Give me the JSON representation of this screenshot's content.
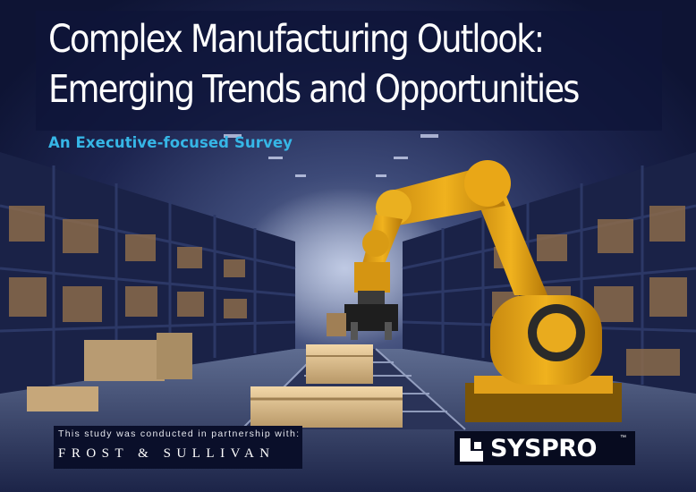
{
  "cover": {
    "title_line1": "Complex Manufacturing Outlook:",
    "title_line2": "Emerging Trends and Opportunities",
    "subtitle": "An Executive-focused Survey"
  },
  "footer": {
    "partnership_note": "This study was conducted in partnership with:",
    "partner_name": "FROST & SULLIVAN",
    "brand_name": "SYSPRO",
    "trademark": "™"
  },
  "colors": {
    "subtitle_accent": "#36b6e6",
    "title_text": "#ffffff",
    "background": "#0e1434",
    "robot_arm": "#f0b21e"
  }
}
